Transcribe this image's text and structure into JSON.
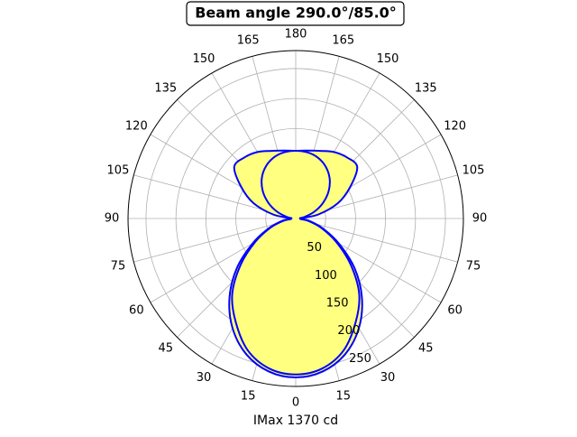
{
  "chart_data": {
    "type": "polar",
    "title": "Beam angle 290.0°/85.0°",
    "xlabel": "IMax 1370 cd",
    "rlim": [
      0,
      280
    ],
    "rticks": [
      50,
      100,
      150,
      200,
      250
    ],
    "thetaticks": [
      0,
      {
        "value": 15,
        "label": "15"
      },
      {
        "value": 30,
        "label": "30"
      },
      {
        "value": 45,
        "label": "45"
      },
      {
        "value": 60,
        "label": "60"
      },
      {
        "value": 75,
        "label": "75"
      },
      {
        "value": 90,
        "label": "90"
      },
      {
        "value": 105,
        "label": "105"
      },
      {
        "value": 120,
        "label": "120"
      },
      {
        "value": 135,
        "label": "135"
      },
      {
        "value": 150,
        "label": "150"
      },
      {
        "value": 165,
        "label": "165"
      },
      {
        "value": 180,
        "label": "180"
      },
      {
        "value": 195,
        "label": "165"
      },
      {
        "value": 210,
        "label": "150"
      },
      {
        "value": 225,
        "label": "135"
      },
      {
        "value": 240,
        "label": "120"
      },
      {
        "value": 255,
        "label": "105"
      },
      {
        "value": 270,
        "label": "90"
      },
      {
        "value": 285,
        "label": "75"
      },
      {
        "value": 300,
        "label": "60"
      },
      {
        "value": 315,
        "label": "45"
      },
      {
        "value": 330,
        "label": "30"
      },
      {
        "value": 345,
        "label": "15"
      }
    ],
    "grid": true,
    "fill_color": "#ffff80",
    "series": [
      {
        "color": "#0000ff",
        "x": [
          0,
          10,
          20,
          30,
          40,
          50,
          60,
          70,
          80,
          90,
          100,
          110,
          120,
          130,
          140,
          150,
          160,
          170,
          180,
          190,
          200,
          210,
          220,
          230,
          240,
          250,
          260,
          270,
          280,
          290,
          300,
          310,
          320,
          330,
          340,
          350
        ],
        "values": [
          265,
          259,
          241,
          211,
          172,
          128,
          83,
          48,
          23,
          8,
          38,
          75,
          105,
          134,
          133,
          128,
          120,
          115,
          113,
          115,
          120,
          128,
          133,
          134,
          105,
          75,
          38,
          8,
          23,
          48,
          83,
          128,
          172,
          211,
          241,
          259
        ]
      },
      {
        "color": "#0000ff",
        "x": [
          0,
          10,
          20,
          30,
          40,
          50,
          60,
          70,
          80,
          90,
          100,
          110,
          120,
          130,
          140,
          150,
          160,
          170,
          180,
          190,
          200,
          210,
          220,
          230,
          240,
          250,
          260,
          270,
          280,
          290,
          300,
          310,
          320,
          330,
          340,
          350
        ],
        "values": [
          260,
          254,
          234,
          200,
          165,
          120,
          78,
          45,
          20,
          7,
          15,
          33,
          53,
          72,
          88,
          100,
          108,
          112,
          113,
          112,
          108,
          100,
          88,
          72,
          53,
          33,
          15,
          7,
          20,
          45,
          78,
          120,
          165,
          200,
          234,
          254
        ]
      }
    ]
  }
}
